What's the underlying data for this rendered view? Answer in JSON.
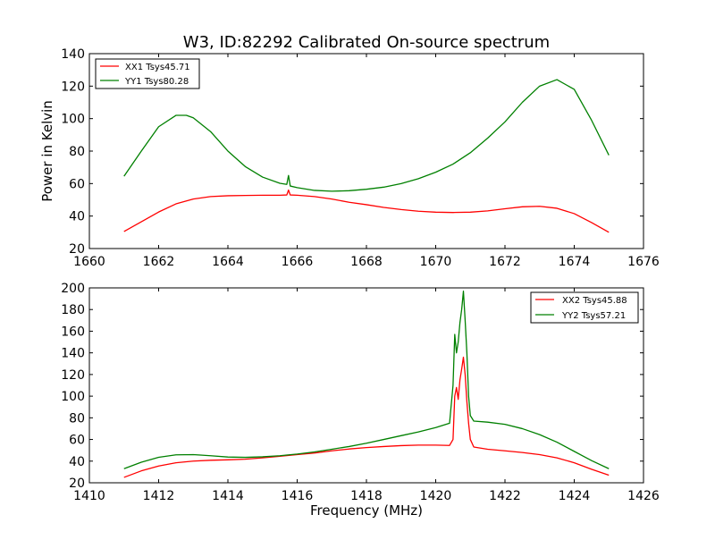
{
  "chart_data": [
    {
      "type": "line",
      "title": "W3, ID:82292 Calibrated On-source spectrum",
      "xlabel": "",
      "ylabel": "Power in Kelvin",
      "xlim": [
        1660,
        1676
      ],
      "ylim": [
        20,
        140
      ],
      "x_ticks": [
        "1660",
        "1662",
        "1664",
        "1666",
        "1668",
        "1670",
        "1672",
        "1674",
        "1676"
      ],
      "y_ticks": [
        "20",
        "40",
        "60",
        "80",
        "100",
        "120",
        "140"
      ],
      "legend_position": "top-left",
      "grid": false,
      "series": [
        {
          "name": "XX1 Tsys45.71",
          "color": "#ff0000",
          "x": [
            1661.0,
            1661.5,
            1662.0,
            1662.5,
            1663.0,
            1663.5,
            1664.0,
            1664.5,
            1665.0,
            1665.5,
            1665.7,
            1665.75,
            1665.8,
            1666.0,
            1666.5,
            1667.0,
            1667.5,
            1668.0,
            1668.5,
            1669.0,
            1669.5,
            1670.0,
            1670.5,
            1671.0,
            1671.5,
            1672.0,
            1672.5,
            1673.0,
            1673.5,
            1674.0,
            1674.5,
            1675.0
          ],
          "y": [
            30.5,
            36.5,
            42.5,
            47.5,
            50.5,
            52.0,
            52.5,
            52.7,
            52.8,
            52.8,
            53.0,
            56.0,
            53.0,
            52.8,
            52.0,
            50.5,
            48.5,
            47.0,
            45.3,
            44.0,
            43.0,
            42.4,
            42.2,
            42.4,
            43.2,
            44.5,
            45.7,
            46.0,
            44.8,
            41.5,
            36.0,
            30.0
          ]
        },
        {
          "name": "YY1 Tsys80.28",
          "color": "#008000",
          "x": [
            1661.0,
            1661.5,
            1662.0,
            1662.5,
            1662.8,
            1663.0,
            1663.5,
            1664.0,
            1664.5,
            1665.0,
            1665.5,
            1665.7,
            1665.75,
            1665.8,
            1666.0,
            1666.5,
            1667.0,
            1667.5,
            1668.0,
            1668.5,
            1669.0,
            1669.5,
            1670.0,
            1670.5,
            1671.0,
            1671.5,
            1672.0,
            1672.5,
            1673.0,
            1673.5,
            1674.0,
            1674.5,
            1675.0
          ],
          "y": [
            64.5,
            80.0,
            95.0,
            102.0,
            102.0,
            100.5,
            92.0,
            80.0,
            70.5,
            64.0,
            60.2,
            59.5,
            65.0,
            58.5,
            57.5,
            55.8,
            55.3,
            55.6,
            56.5,
            57.8,
            60.0,
            63.0,
            67.0,
            72.0,
            79.0,
            88.0,
            98.0,
            110.0,
            120.0,
            124.0,
            118.0,
            99.0,
            77.5
          ]
        }
      ]
    },
    {
      "type": "line",
      "title": "",
      "xlabel": "Frequency (MHz)",
      "ylabel": "",
      "xlim": [
        1410,
        1426
      ],
      "ylim": [
        20,
        200
      ],
      "x_ticks": [
        "1410",
        "1412",
        "1414",
        "1416",
        "1418",
        "1420",
        "1422",
        "1424",
        "1426"
      ],
      "y_ticks": [
        "20",
        "40",
        "60",
        "80",
        "100",
        "120",
        "140",
        "160",
        "180",
        "200"
      ],
      "legend_position": "top-right",
      "grid": false,
      "series": [
        {
          "name": "XX2 Tsys45.88",
          "color": "#ff0000",
          "x": [
            1411.0,
            1411.5,
            1412.0,
            1412.5,
            1413.0,
            1413.5,
            1414.0,
            1414.5,
            1415.0,
            1415.5,
            1416.0,
            1416.5,
            1417.0,
            1417.5,
            1418.0,
            1418.5,
            1419.0,
            1419.5,
            1420.0,
            1420.4,
            1420.5,
            1420.55,
            1420.6,
            1420.65,
            1420.7,
            1420.75,
            1420.8,
            1420.85,
            1420.9,
            1420.95,
            1421.0,
            1421.1,
            1421.5,
            1422.0,
            1422.5,
            1423.0,
            1423.5,
            1424.0,
            1424.5,
            1425.0
          ],
          "y": [
            25.0,
            31.0,
            35.5,
            38.5,
            40.0,
            40.8,
            41.2,
            41.8,
            43.0,
            44.5,
            46.0,
            47.5,
            49.5,
            51.2,
            52.5,
            53.5,
            54.3,
            54.8,
            54.8,
            54.5,
            60.0,
            100.0,
            108.0,
            97.0,
            115.0,
            125.0,
            136.0,
            120.0,
            95.0,
            75.0,
            60.0,
            53.0,
            51.0,
            49.5,
            48.0,
            46.0,
            43.0,
            38.5,
            32.5,
            27.0
          ]
        },
        {
          "name": "YY2 Tsys57.21",
          "color": "#008000",
          "x": [
            1411.0,
            1411.5,
            1412.0,
            1412.5,
            1413.0,
            1413.5,
            1414.0,
            1414.5,
            1415.0,
            1415.5,
            1416.0,
            1416.5,
            1417.0,
            1417.5,
            1418.0,
            1418.5,
            1419.0,
            1419.5,
            1420.0,
            1420.4,
            1420.5,
            1420.55,
            1420.6,
            1420.65,
            1420.7,
            1420.75,
            1420.8,
            1420.85,
            1420.9,
            1420.95,
            1421.0,
            1421.1,
            1421.5,
            1422.0,
            1422.5,
            1423.0,
            1423.5,
            1424.0,
            1424.5,
            1425.0
          ],
          "y": [
            33.0,
            39.0,
            43.5,
            45.8,
            46.0,
            45.0,
            43.8,
            43.5,
            44.0,
            45.0,
            46.5,
            48.5,
            51.0,
            53.5,
            56.5,
            60.0,
            63.5,
            67.0,
            71.0,
            75.0,
            110.0,
            157.0,
            140.0,
            150.0,
            168.0,
            180.0,
            197.0,
            170.0,
            140.0,
            100.0,
            82.0,
            77.0,
            76.0,
            74.0,
            70.0,
            64.5,
            57.5,
            49.0,
            40.5,
            33.0
          ]
        }
      ]
    }
  ]
}
